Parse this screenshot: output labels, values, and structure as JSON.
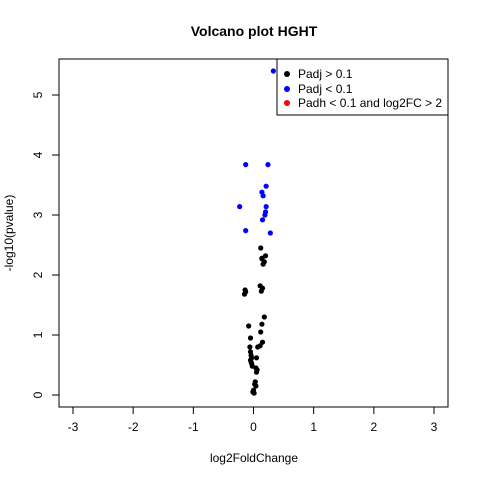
{
  "chart_data": {
    "type": "scatter",
    "title": "Volcano plot HGHT",
    "xlabel": "log2FoldChange",
    "ylabel": "-log10(pvalue)",
    "xlim": [
      -3,
      3
    ],
    "ylim": [
      0,
      5.5
    ],
    "x_ticks": [
      "-3",
      "-2",
      "-1",
      "0",
      "1",
      "2",
      "3"
    ],
    "y_ticks": [
      "0",
      "1",
      "2",
      "3",
      "4",
      "5"
    ],
    "grid": false,
    "legend_position": "top-right",
    "series": [
      {
        "name": "Padj > 0.1",
        "color": "#000000",
        "points": [
          [
            0.12,
            2.45
          ],
          [
            0.2,
            2.32
          ],
          [
            0.14,
            2.27
          ],
          [
            0.18,
            2.22
          ],
          [
            0.16,
            2.18
          ],
          [
            0.14,
            2.28
          ],
          [
            0.11,
            1.82
          ],
          [
            0.15,
            1.78
          ],
          [
            0.13,
            1.73
          ],
          [
            -0.14,
            1.75
          ],
          [
            -0.13,
            1.72
          ],
          [
            -0.15,
            1.68
          ],
          [
            0.18,
            1.3
          ],
          [
            0.14,
            1.18
          ],
          [
            -0.08,
            1.15
          ],
          [
            0.12,
            1.05
          ],
          [
            -0.05,
            0.95
          ],
          [
            0.15,
            0.88
          ],
          [
            0.11,
            0.82
          ],
          [
            0.07,
            0.8
          ],
          [
            -0.06,
            0.8
          ],
          [
            -0.05,
            0.72
          ],
          [
            -0.04,
            0.66
          ],
          [
            -0.03,
            0.62
          ],
          [
            0.05,
            0.62
          ],
          [
            -0.05,
            0.58
          ],
          [
            -0.04,
            0.55
          ],
          [
            -0.03,
            0.52
          ],
          [
            -0.02,
            0.48
          ],
          [
            0.04,
            0.45
          ],
          [
            0.06,
            0.42
          ],
          [
            0.05,
            0.38
          ],
          [
            0.03,
            0.22
          ],
          [
            0.02,
            0.18
          ],
          [
            0.04,
            0.15
          ],
          [
            0.0,
            0.08
          ],
          [
            -0.01,
            0.05
          ],
          [
            0.01,
            0.03
          ]
        ]
      },
      {
        "name": "Padj < 0.1",
        "color": "#0000ff",
        "points": [
          [
            0.33,
            5.4
          ],
          [
            -0.13,
            3.84
          ],
          [
            0.24,
            3.84
          ],
          [
            0.21,
            3.48
          ],
          [
            0.14,
            3.38
          ],
          [
            0.16,
            3.32
          ],
          [
            -0.23,
            3.14
          ],
          [
            0.21,
            3.14
          ],
          [
            0.2,
            3.05
          ],
          [
            0.19,
            3.0
          ],
          [
            0.15,
            2.92
          ],
          [
            -0.13,
            2.74
          ],
          [
            0.28,
            2.7
          ]
        ]
      },
      {
        "name": "Padh < 0.1 and log2FC > 2",
        "color": "#ff0000",
        "points": []
      }
    ]
  }
}
